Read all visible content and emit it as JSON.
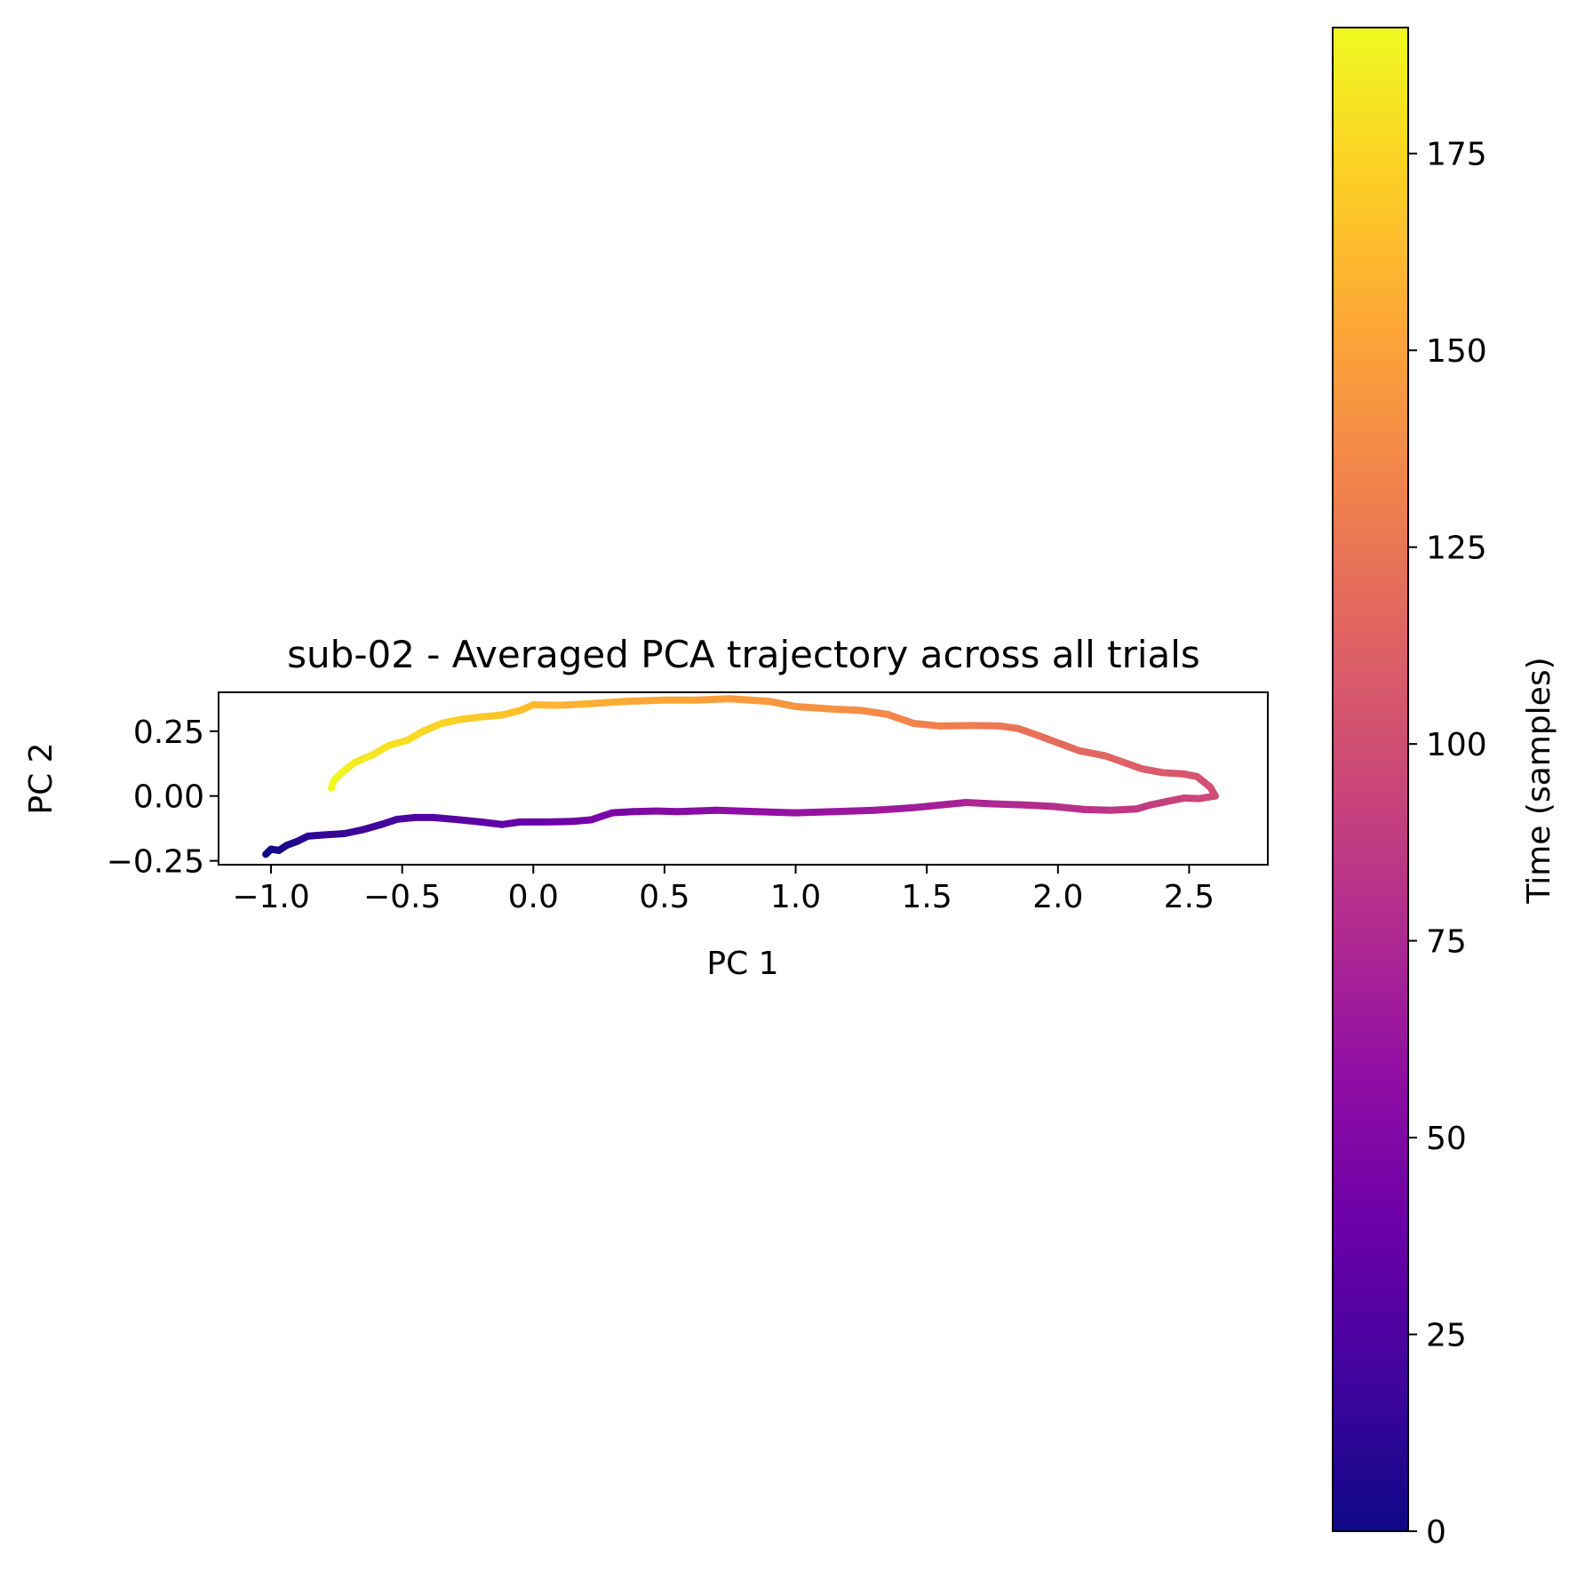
{
  "chart_data": {
    "type": "line",
    "title": "sub-02 - Averaged PCA trajectory across all trials",
    "xlabel": "PC 1",
    "ylabel": "PC 2",
    "xlim": [
      -1.2,
      2.8
    ],
    "ylim": [
      -0.265,
      0.4
    ],
    "x_ticks": [
      -1.0,
      -0.5,
      0.0,
      0.5,
      1.0,
      1.5,
      2.0,
      2.5
    ],
    "x_tick_labels": [
      "−1.0",
      "−0.5",
      "0.0",
      "0.5",
      "1.0",
      "1.5",
      "2.0",
      "2.5"
    ],
    "y_ticks": [
      0.25,
      0.0,
      -0.25
    ],
    "y_tick_labels": [
      "0.25",
      "0.00",
      "−0.25"
    ],
    "grid": false,
    "colormap": "plasma",
    "colorbar": {
      "label": "Time (samples)",
      "range": [
        0,
        191
      ],
      "ticks": [
        0,
        25,
        50,
        75,
        100,
        125,
        150,
        175
      ],
      "tick_labels": [
        "0",
        "25",
        "50",
        "75",
        "100",
        "125",
        "150",
        "175"
      ]
    },
    "series": [
      {
        "color_by": "time",
        "points": [
          [
            -1.02,
            -0.225
          ],
          [
            -1.0,
            -0.205
          ],
          [
            -0.97,
            -0.21
          ],
          [
            -0.94,
            -0.19
          ],
          [
            -0.9,
            -0.175
          ],
          [
            -0.86,
            -0.155
          ],
          [
            -0.8,
            -0.15
          ],
          [
            -0.72,
            -0.145
          ],
          [
            -0.65,
            -0.13
          ],
          [
            -0.58,
            -0.11
          ],
          [
            -0.52,
            -0.09
          ],
          [
            -0.45,
            -0.083
          ],
          [
            -0.38,
            -0.083
          ],
          [
            -0.3,
            -0.09
          ],
          [
            -0.2,
            -0.1
          ],
          [
            -0.12,
            -0.11
          ],
          [
            -0.05,
            -0.1
          ],
          [
            0.05,
            -0.1
          ],
          [
            0.15,
            -0.098
          ],
          [
            0.22,
            -0.092
          ],
          [
            0.3,
            -0.065
          ],
          [
            0.38,
            -0.06
          ],
          [
            0.47,
            -0.058
          ],
          [
            0.55,
            -0.06
          ],
          [
            0.7,
            -0.055
          ],
          [
            0.85,
            -0.06
          ],
          [
            1.0,
            -0.065
          ],
          [
            1.15,
            -0.06
          ],
          [
            1.3,
            -0.055
          ],
          [
            1.45,
            -0.045
          ],
          [
            1.58,
            -0.032
          ],
          [
            1.65,
            -0.025
          ],
          [
            1.75,
            -0.03
          ],
          [
            1.88,
            -0.035
          ],
          [
            1.98,
            -0.04
          ],
          [
            2.1,
            -0.052
          ],
          [
            2.2,
            -0.055
          ],
          [
            2.3,
            -0.05
          ],
          [
            2.35,
            -0.035
          ],
          [
            2.42,
            -0.02
          ],
          [
            2.48,
            -0.008
          ],
          [
            2.54,
            -0.01
          ],
          [
            2.6,
            0.0
          ],
          [
            2.58,
            0.035
          ],
          [
            2.53,
            0.075
          ],
          [
            2.48,
            0.085
          ],
          [
            2.4,
            0.09
          ],
          [
            2.32,
            0.105
          ],
          [
            2.25,
            0.13
          ],
          [
            2.18,
            0.155
          ],
          [
            2.08,
            0.175
          ],
          [
            2.0,
            0.205
          ],
          [
            1.92,
            0.235
          ],
          [
            1.85,
            0.26
          ],
          [
            1.78,
            0.27
          ],
          [
            1.68,
            0.272
          ],
          [
            1.55,
            0.27
          ],
          [
            1.45,
            0.28
          ],
          [
            1.35,
            0.315
          ],
          [
            1.25,
            0.33
          ],
          [
            1.15,
            0.335
          ],
          [
            1.0,
            0.345
          ],
          [
            0.9,
            0.365
          ],
          [
            0.75,
            0.375
          ],
          [
            0.62,
            0.37
          ],
          [
            0.5,
            0.37
          ],
          [
            0.35,
            0.365
          ],
          [
            0.2,
            0.355
          ],
          [
            0.1,
            0.35
          ],
          [
            0.0,
            0.352
          ],
          [
            -0.05,
            0.33
          ],
          [
            -0.12,
            0.312
          ],
          [
            -0.2,
            0.305
          ],
          [
            -0.28,
            0.295
          ],
          [
            -0.35,
            0.28
          ],
          [
            -0.42,
            0.25
          ],
          [
            -0.48,
            0.215
          ],
          [
            -0.55,
            0.195
          ],
          [
            -0.62,
            0.155
          ],
          [
            -0.68,
            0.13
          ],
          [
            -0.73,
            0.09
          ],
          [
            -0.76,
            0.06
          ],
          [
            -0.77,
            0.03
          ]
        ]
      }
    ]
  }
}
